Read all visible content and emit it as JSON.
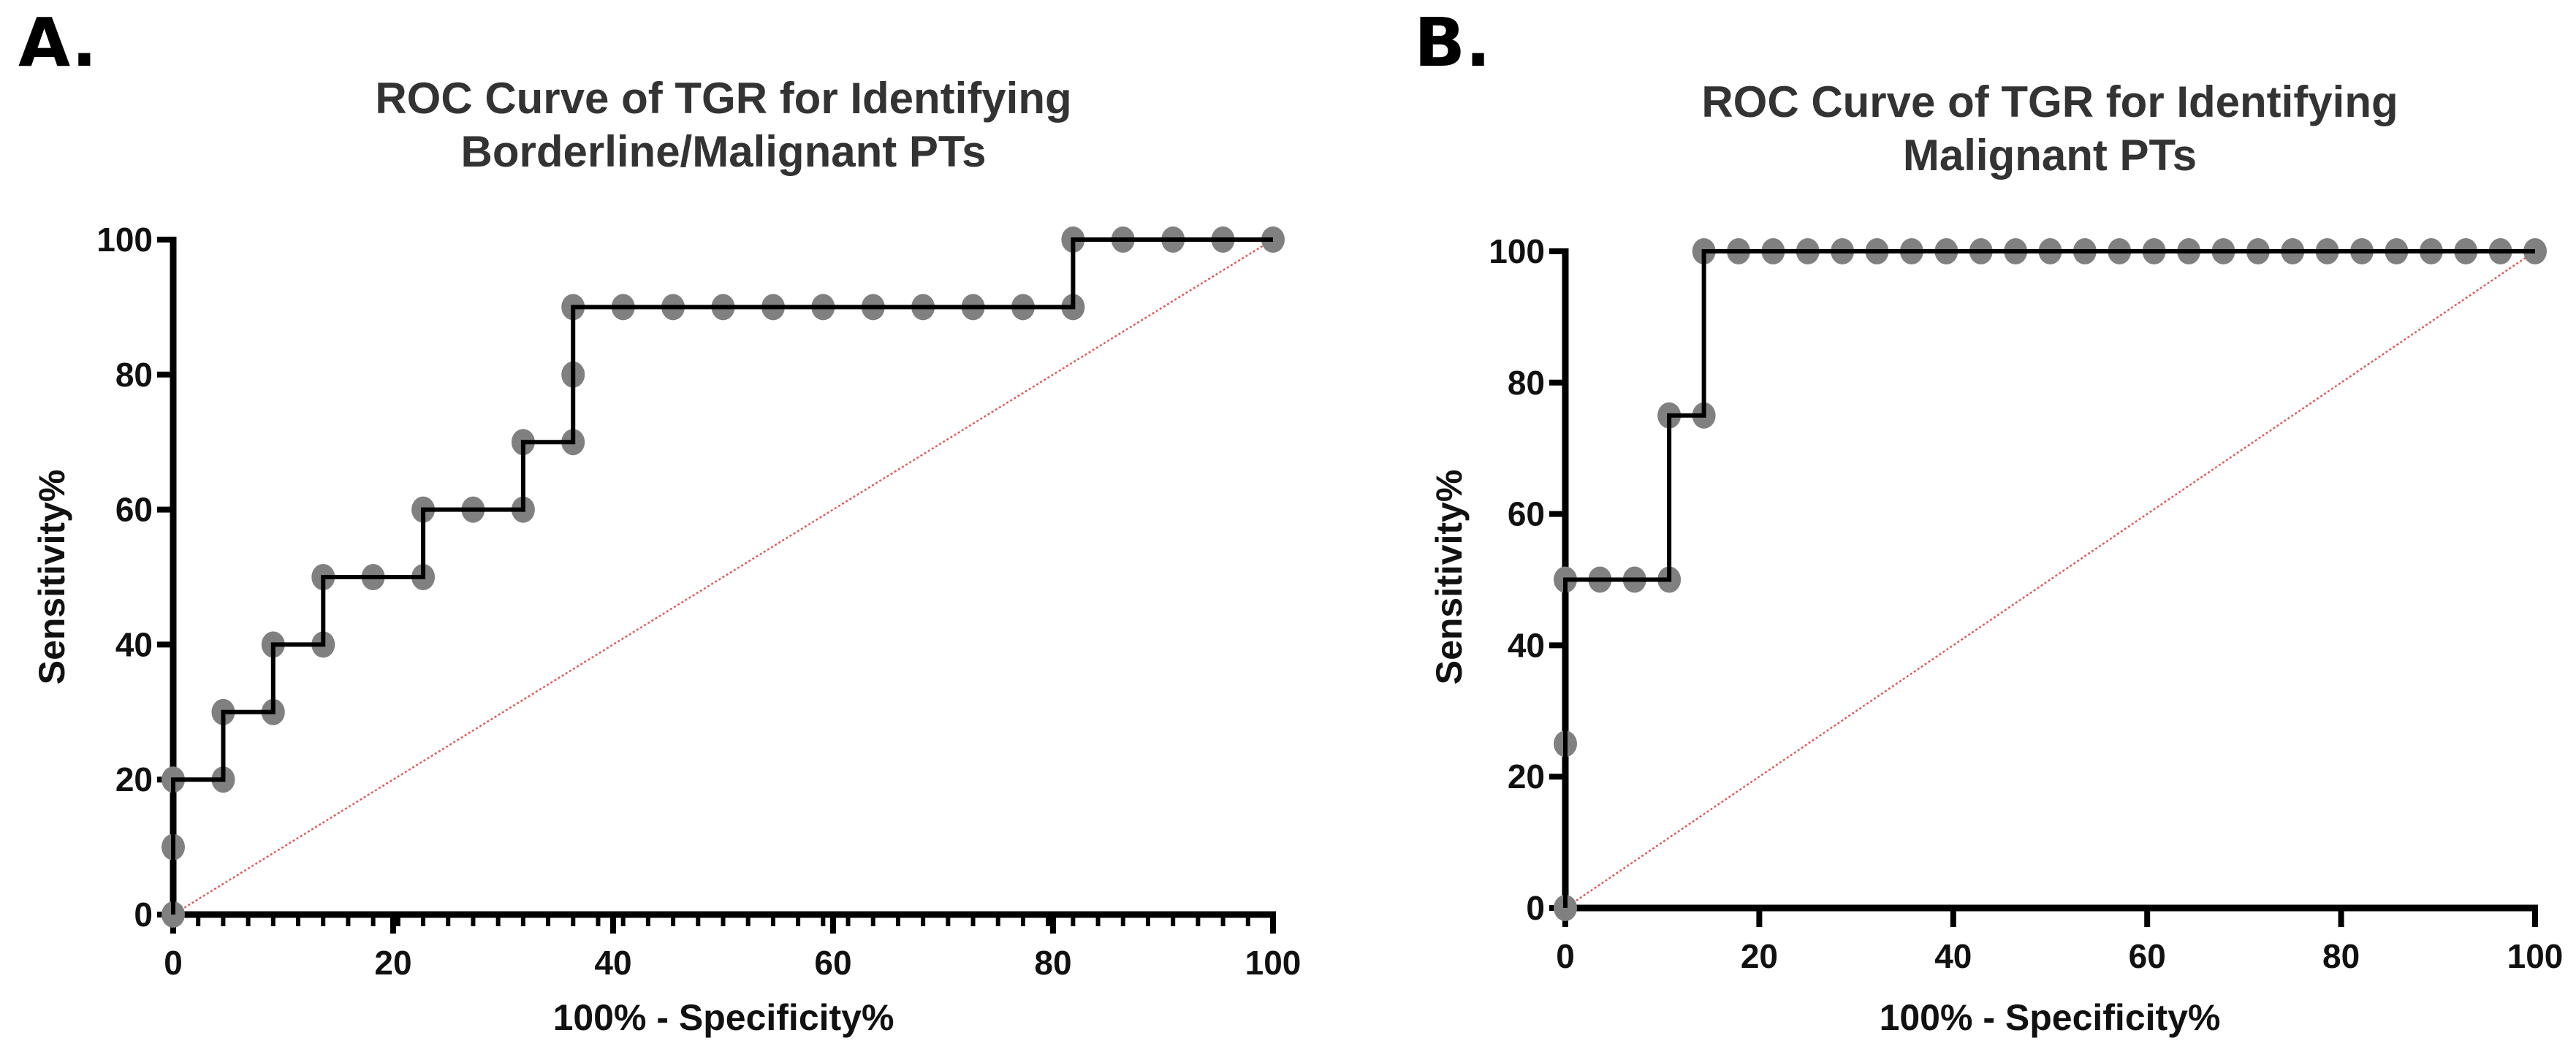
{
  "chart_data": [
    {
      "panel_label": "A.",
      "type": "line",
      "title_lines": [
        "ROC Curve of TGR for Identifying",
        "Borderline/Malignant PTs"
      ],
      "xlabel": "100% - Specificity%",
      "ylabel": "Sensitivity%",
      "xlim": [
        0,
        100
      ],
      "ylim": [
        0,
        100
      ],
      "xticks": [
        "0",
        "20",
        "40",
        "60",
        "80",
        "100"
      ],
      "yticks": [
        "0",
        "20",
        "40",
        "60",
        "80",
        "100"
      ],
      "grid": false,
      "minor_x_ticks": true,
      "reference_line": {
        "from": [
          0,
          0
        ],
        "to": [
          100,
          100
        ],
        "color": "#e05a5a",
        "style": "dotted"
      },
      "curve_color": "#000000",
      "marker_color": "#808080",
      "x": [
        0,
        0,
        0,
        4.55,
        4.55,
        9.09,
        9.09,
        13.64,
        13.64,
        18.18,
        22.73,
        22.73,
        27.27,
        31.82,
        31.82,
        36.36,
        36.36,
        36.36,
        40.91,
        45.45,
        50,
        54.55,
        59.09,
        63.64,
        68.18,
        72.73,
        77.27,
        81.82,
        81.82,
        86.36,
        90.91,
        95.45,
        100
      ],
      "y": [
        0,
        10,
        20,
        20,
        30,
        30,
        40,
        40,
        50,
        50,
        50,
        60,
        60,
        60,
        70,
        70,
        80,
        90,
        90,
        90,
        90,
        90,
        90,
        90,
        90,
        90,
        90,
        90,
        100,
        100,
        100,
        100,
        100
      ]
    },
    {
      "panel_label": "B.",
      "type": "line",
      "title_lines": [
        "ROC Curve of TGR for Identifying",
        "Malignant PTs"
      ],
      "xlabel": "100% - Specificity%",
      "ylabel": "Sensitivity%",
      "xlim": [
        0,
        100
      ],
      "ylim": [
        0,
        100
      ],
      "xticks": [
        "0",
        "20",
        "40",
        "60",
        "80",
        "100"
      ],
      "yticks": [
        "0",
        "20",
        "40",
        "60",
        "80",
        "100"
      ],
      "grid": false,
      "minor_x_ticks": false,
      "reference_line": {
        "from": [
          0,
          0
        ],
        "to": [
          100,
          100
        ],
        "color": "#e05a5a",
        "style": "dotted"
      },
      "curve_color": "#000000",
      "marker_color": "#808080",
      "x": [
        0,
        0,
        0,
        3.57,
        7.14,
        10.71,
        10.71,
        14.29,
        14.29,
        17.86,
        21.43,
        25,
        28.57,
        32.14,
        35.71,
        39.29,
        42.86,
        46.43,
        50,
        53.57,
        57.14,
        60.71,
        64.29,
        67.86,
        71.43,
        75,
        78.57,
        82.14,
        85.71,
        89.29,
        92.86,
        96.43,
        100
      ],
      "y": [
        0,
        25,
        50,
        50,
        50,
        50,
        75,
        75,
        100,
        100,
        100,
        100,
        100,
        100,
        100,
        100,
        100,
        100,
        100,
        100,
        100,
        100,
        100,
        100,
        100,
        100,
        100,
        100,
        100,
        100,
        100,
        100,
        100
      ]
    }
  ]
}
